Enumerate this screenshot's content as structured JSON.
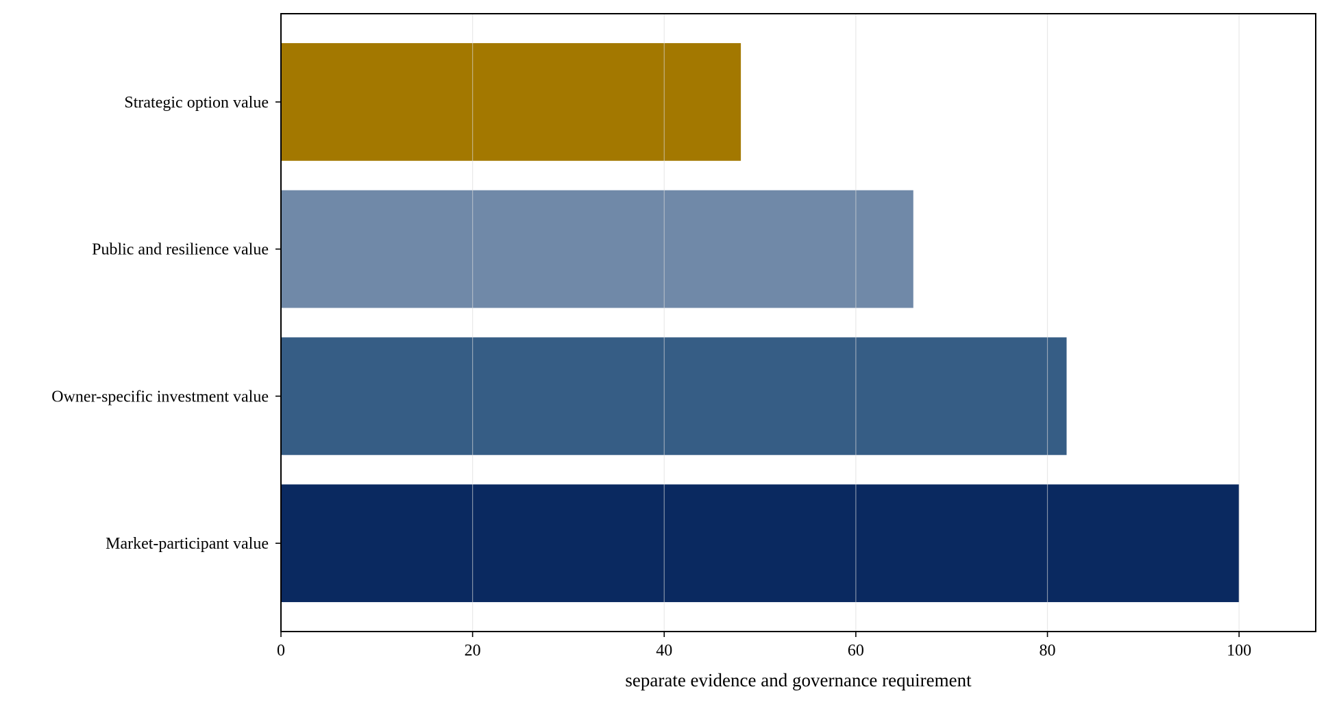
{
  "chart_data": {
    "type": "bar",
    "orientation": "horizontal",
    "categories": [
      "Market-participant value",
      "Owner-specific investment value",
      "Public and resilience value",
      "Strategic option value"
    ],
    "values": [
      100,
      82,
      66,
      48
    ],
    "colors": [
      "#0a2960",
      "#365d85",
      "#7089a8",
      "#a37800"
    ],
    "xlabel": "separate evidence and governance requirement",
    "ylabel": "",
    "title": "",
    "xlim": [
      0,
      108
    ],
    "xticks": [
      0,
      20,
      40,
      60,
      80,
      100
    ],
    "grid": "vertical",
    "legend": "none"
  }
}
